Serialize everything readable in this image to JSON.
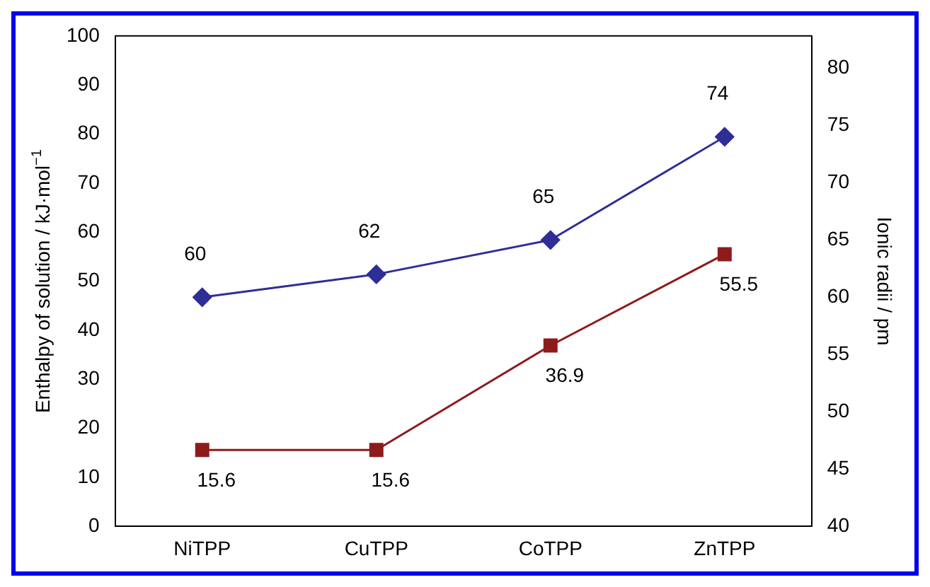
{
  "chart_data": {
    "type": "line",
    "categories": [
      "NiTPP",
      "CuTPP",
      "CoTPP",
      "ZnTPP"
    ],
    "ylabel": "Enthalpy of solution / kJ·mol$^{−1}$",
    "y2label": "Ionic radii / pm",
    "series": [
      {
        "color": "#2e2e96",
        "values": [
          60,
          62,
          65,
          74
        ],
        "axis": "y2",
        "marker": "diamond"
      },
      {
        "color": "#8e1b1b",
        "values": [
          15.6,
          15.6,
          36.9,
          55.5
        ],
        "axis": "y",
        "marker": "square"
      }
    ],
    "ylim": [
      0,
      100
    ],
    "yticks": [
      0,
      10,
      20,
      30,
      40,
      50,
      60,
      70,
      80,
      90,
      100
    ],
    "y2lim": [
      40,
      82.8
    ],
    "y2ticks": [
      40,
      45,
      50,
      55,
      60,
      65,
      70,
      75,
      80
    ],
    "data_labels": true,
    "grid": false,
    "legend": false,
    "line_style": "solid"
  }
}
